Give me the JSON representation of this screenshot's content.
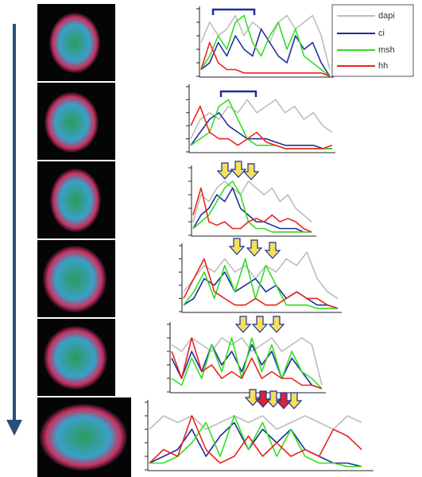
{
  "chart_data": [
    {
      "type": "line",
      "x": [
        0,
        1,
        2,
        3,
        4,
        5,
        6,
        7,
        8,
        9,
        10,
        11,
        12,
        13,
        14,
        15
      ],
      "xlim": [
        0,
        15
      ],
      "ylim": [
        0,
        10
      ],
      "yticks": [
        0,
        2,
        4,
        6,
        8,
        10
      ],
      "series": [
        {
          "name": "dapi",
          "color": "#bdbdbd",
          "values": [
            5,
            8,
            6,
            7,
            9,
            6,
            8,
            7,
            5,
            8,
            9,
            7,
            8,
            9,
            6,
            1
          ]
        },
        {
          "name": "ci",
          "color": "#1f2f9a",
          "values": [
            1,
            2,
            5,
            3,
            6,
            4,
            3,
            7,
            5,
            3,
            2,
            6,
            4,
            5,
            2,
            0
          ]
        },
        {
          "name": "msh",
          "color": "#33dd22",
          "values": [
            1,
            3,
            6,
            4,
            8,
            9,
            5,
            3,
            6,
            8,
            4,
            7,
            3,
            2,
            1,
            0
          ]
        },
        {
          "name": "hh",
          "color": "#e8261e",
          "values": [
            1,
            5,
            2,
            1,
            1,
            0.5,
            0.5,
            0.5,
            0.5,
            0.5,
            0.5,
            0.5,
            0.5,
            0.5,
            0.5,
            0
          ]
        }
      ]
    },
    {
      "type": "line",
      "x": [
        0,
        1,
        2,
        3,
        4,
        5,
        6,
        7,
        8,
        9,
        10,
        11,
        12,
        13,
        14,
        15
      ],
      "xlim": [
        0,
        15
      ],
      "ylim": [
        0,
        10
      ],
      "yticks": [
        0,
        2,
        4,
        6,
        8,
        10
      ],
      "series": [
        {
          "color": "#bdbdbd",
          "values": [
            2,
            5,
            6,
            5,
            7,
            6,
            8,
            6,
            7,
            8,
            6,
            7,
            5,
            6,
            4,
            3
          ]
        },
        {
          "color": "#1f2f9a",
          "values": [
            1,
            3,
            5,
            6,
            4,
            3,
            2,
            2,
            2,
            1.5,
            1,
            1,
            1,
            1,
            0.5,
            0.5
          ]
        },
        {
          "color": "#33dd22",
          "values": [
            1,
            2,
            3,
            7,
            8,
            5,
            2,
            1,
            1,
            1,
            0.5,
            0.5,
            0.5,
            0.5,
            0.5,
            0.5
          ]
        },
        {
          "color": "#e8261e",
          "values": [
            4,
            7,
            3,
            2,
            2,
            1,
            2,
            3,
            1.5,
            1,
            0.5,
            0.5,
            0.5,
            0.5,
            0.5,
            1
          ]
        }
      ]
    },
    {
      "type": "line",
      "x": [
        0,
        1,
        2,
        3,
        4,
        5,
        6,
        7,
        8,
        9,
        10,
        11,
        12,
        13,
        14,
        15
      ],
      "xlim": [
        0,
        15
      ],
      "ylim": [
        0,
        10
      ],
      "yticks": [
        0,
        2,
        4,
        6,
        8,
        10
      ],
      "series": [
        {
          "color": "#bdbdbd",
          "values": [
            2,
            6,
            5,
            7,
            8,
            7,
            6,
            8,
            7,
            6,
            7,
            5,
            6,
            4,
            3,
            2
          ]
        },
        {
          "color": "#1f2f9a",
          "values": [
            1,
            3,
            4,
            6,
            5,
            7,
            4,
            3,
            2,
            2,
            1.5,
            1,
            1,
            1,
            0.5,
            0.5
          ]
        },
        {
          "color": "#33dd22",
          "values": [
            1,
            2,
            3,
            5,
            7,
            8,
            6,
            2,
            1,
            1,
            0.5,
            0.5,
            0.5,
            0.5,
            0.5,
            0.5
          ]
        },
        {
          "color": "#e8261e",
          "values": [
            3,
            7,
            2,
            1.5,
            2,
            1,
            1,
            2,
            2.5,
            2,
            3,
            2,
            2.5,
            2,
            1,
            0.5
          ]
        }
      ]
    },
    {
      "type": "line",
      "x": [
        0,
        1,
        2,
        3,
        4,
        5,
        6,
        7,
        8,
        9,
        10,
        11,
        12,
        13,
        14,
        15
      ],
      "xlim": [
        0,
        15
      ],
      "ylim": [
        0,
        10
      ],
      "yticks": [
        0,
        2,
        4,
        6,
        8,
        10
      ],
      "series": [
        {
          "color": "#bdbdbd",
          "values": [
            3,
            5,
            7,
            6,
            8,
            6,
            7,
            5,
            7,
            6,
            8,
            7,
            9,
            5,
            3,
            2
          ]
        },
        {
          "color": "#1f2f9a",
          "values": [
            1,
            2,
            5,
            4,
            6,
            3,
            4,
            5,
            3,
            4,
            2,
            3,
            2,
            1,
            1,
            0.5
          ]
        },
        {
          "color": "#33dd22",
          "values": [
            1,
            3,
            6,
            2,
            7,
            3,
            8,
            2,
            7,
            4,
            1,
            1,
            1,
            0.5,
            0.5,
            0.5
          ]
        },
        {
          "color": "#e8261e",
          "values": [
            2,
            5,
            8,
            3,
            2,
            1,
            1,
            2,
            1,
            1,
            2,
            3,
            2,
            2,
            1,
            0.5
          ]
        }
      ]
    },
    {
      "type": "line",
      "x": [
        0,
        1,
        2,
        3,
        4,
        5,
        6,
        7,
        8,
        9,
        10,
        11,
        12,
        13,
        14,
        15
      ],
      "xlim": [
        0,
        15
      ],
      "ylim": [
        0,
        10
      ],
      "yticks": [
        0,
        2,
        4,
        6,
        8,
        10
      ],
      "series": [
        {
          "color": "#bdbdbd",
          "values": [
            7,
            6,
            8,
            7,
            6,
            8,
            7,
            8,
            6,
            7,
            8,
            6,
            7,
            8,
            7,
            1
          ]
        },
        {
          "color": "#1f2f9a",
          "values": [
            5,
            2,
            6,
            3,
            7,
            4,
            6,
            3,
            7,
            4,
            6,
            2,
            5,
            3,
            1,
            0.5
          ]
        },
        {
          "color": "#33dd22",
          "values": [
            2,
            1,
            5,
            2,
            7,
            3,
            8,
            2,
            8,
            3,
            7,
            2,
            6,
            3,
            2,
            0.5
          ]
        },
        {
          "color": "#e8261e",
          "values": [
            6,
            2,
            8,
            3,
            4,
            2,
            3,
            2,
            5,
            2,
            3,
            2,
            2,
            1,
            1,
            0.5
          ]
        }
      ]
    },
    {
      "type": "line",
      "x": [
        0,
        1,
        2,
        3,
        4,
        5,
        6,
        7,
        8,
        9,
        10,
        11,
        12,
        13,
        14,
        15
      ],
      "xlim": [
        0,
        15
      ],
      "ylim": [
        0,
        10
      ],
      "yticks": [
        0,
        2,
        4,
        6,
        8,
        10
      ],
      "series": [
        {
          "color": "#bdbdbd",
          "values": [
            6,
            8,
            7,
            8,
            6,
            7,
            8,
            7,
            8,
            6,
            7,
            8,
            7,
            6,
            8,
            7
          ]
        },
        {
          "color": "#1f2f9a",
          "values": [
            1,
            2,
            3,
            6,
            2,
            5,
            7,
            3,
            6,
            4,
            6,
            3,
            2,
            1,
            1,
            0.5
          ]
        },
        {
          "color": "#33dd22",
          "values": [
            1,
            1,
            2,
            4,
            7,
            2,
            8,
            3,
            7,
            2,
            6,
            2,
            1,
            1,
            0.5,
            0.5
          ]
        },
        {
          "color": "#e8261e",
          "values": [
            1,
            3,
            2,
            8,
            3,
            1,
            2,
            5,
            2,
            4,
            2,
            3,
            2,
            6,
            5,
            3
          ]
        }
      ]
    }
  ]
}
